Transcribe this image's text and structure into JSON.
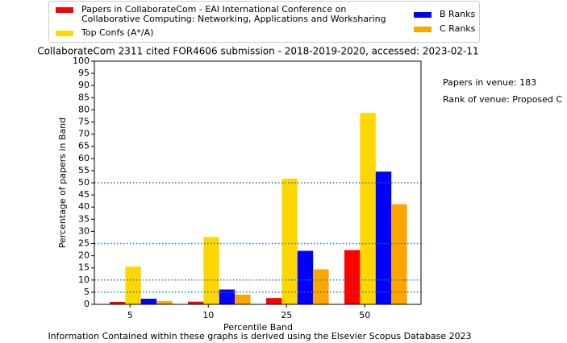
{
  "chart_data": {
    "type": "bar",
    "title": "CollaborateCom 2311 cited FOR4606 submission - 2018-2019-2020, accessed: 2023-02-11",
    "x_label": "Percentile Band",
    "y_label": "Percentage of papers in Band",
    "categories": [
      "5",
      "10",
      "25",
      "50"
    ],
    "series": [
      {
        "name": "Papers in CollaborateCom - EAI International Conference on\nCollaborative Computing: Networking, Applications and Worksharing",
        "color": "#ff0000",
        "values": [
          1.0,
          1.1,
          2.6,
          22.3
        ]
      },
      {
        "name": "Top Confs (A*/A)",
        "color": "#ffd700",
        "values": [
          15.5,
          27.7,
          51.7,
          78.7
        ]
      },
      {
        "name": "B Ranks",
        "color": "#0000ff",
        "values": [
          2.3,
          6.1,
          22.0,
          54.6
        ]
      },
      {
        "name": "C Ranks",
        "color": "#ffa500",
        "values": [
          1.3,
          4.0,
          14.4,
          41.2
        ]
      }
    ],
    "ylim": [
      0,
      100
    ],
    "yticks": [
      0,
      5,
      10,
      15,
      20,
      25,
      30,
      35,
      40,
      45,
      50,
      55,
      60,
      65,
      70,
      75,
      80,
      85,
      90,
      95,
      100
    ],
    "reference_lines": [
      5,
      10,
      25,
      50
    ],
    "reference_line_color": "#1f77b4",
    "annotations": [
      "Papers in venue: 183",
      "Rank of venue: Proposed C"
    ],
    "footer": "Information Contained within these graphs is derived using the Elsevier Scopus Database 2023",
    "legend": "upper center"
  }
}
